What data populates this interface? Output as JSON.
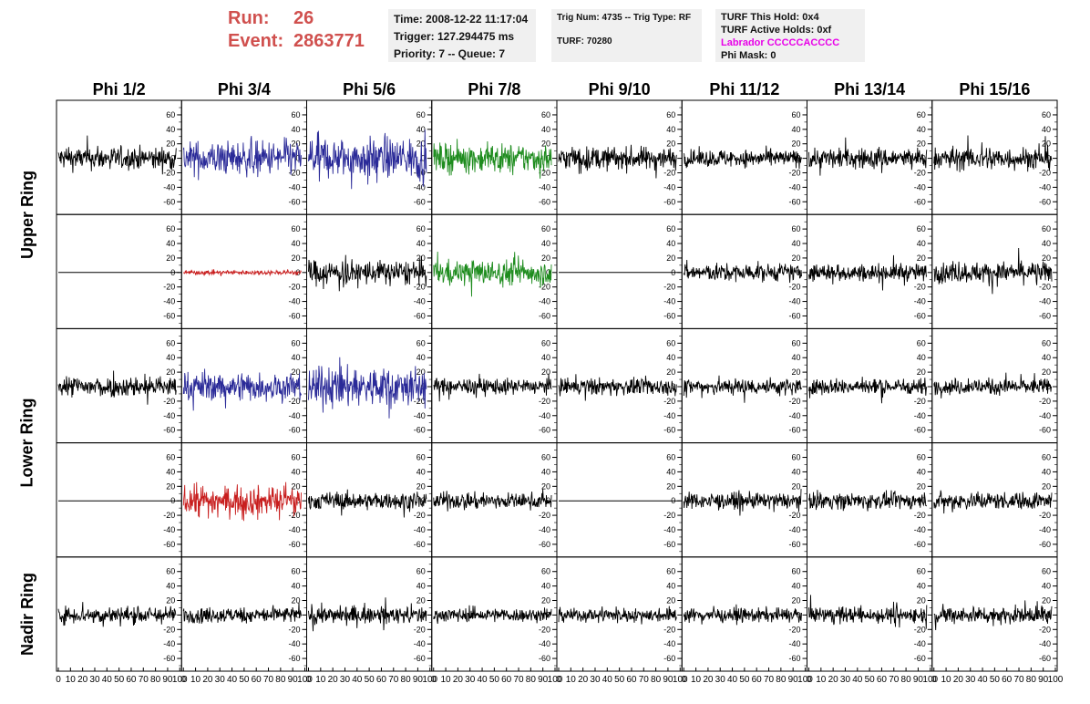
{
  "header": {
    "run_label": "Run:",
    "run_value": "26",
    "event_label": "Event:",
    "event_value": "2863771"
  },
  "info1": {
    "time": "Time: 2008-12-22 11:17:04",
    "trigger": "Trigger: 127.294475 ms",
    "priority": "Priority: 7 -- Queue: 7"
  },
  "info2": {
    "trig": "Trig Num: 4735 -- Trig Type: RF",
    "turf": "TURF: 70280"
  },
  "info3": {
    "this_hold": "TURF This Hold: 0x4",
    "active_holds": "TURF Active Holds: 0xf",
    "labrador": "Labrador CCCCCACCCC",
    "phi_mask": "Phi Mask: 0"
  },
  "columns": [
    "Phi 1/2",
    "Phi 3/4",
    "Phi 5/6",
    "Phi 7/8",
    "Phi 9/10",
    "Phi 11/12",
    "Phi 13/14",
    "Phi 15/16"
  ],
  "rows": [
    "Upper Ring",
    "Lower Ring",
    "Nadir Ring"
  ],
  "colors": {
    "black": "#000000",
    "blue": "#2a2a98",
    "red": "#c81e1e",
    "green": "#1e8c1e",
    "header_red": "#d0504e",
    "magenta": "#e800e8"
  },
  "chart_data": {
    "type": "line",
    "xlim": [
      0,
      100
    ],
    "ylim": [
      -70,
      70
    ],
    "y_ticks": [
      -60,
      -40,
      -20,
      0,
      20,
      40,
      60
    ],
    "x_ticks": [
      0,
      10,
      20,
      30,
      40,
      50,
      60,
      70,
      80,
      90,
      100
    ],
    "panel_rows": 5,
    "panel_cols": 8,
    "panels": [
      [
        "black:20",
        "blue:30",
        "blue:35",
        "green:25",
        "black:20",
        "black:15",
        "black:18",
        "black:20"
      ],
      [
        "flat",
        "red:4",
        "black:22",
        "green:22",
        "flat",
        "black:15",
        "black:15",
        "black:18"
      ],
      [
        "black:18",
        "blue:25",
        "blue:35",
        "black:14",
        "black:15",
        "black:15",
        "black:14",
        "black:14"
      ],
      [
        "flat",
        "red:25",
        "black:15",
        "black:14",
        "flat",
        "black:14",
        "black:14",
        "black:15"
      ],
      [
        "black:15",
        "black:14",
        "black:15",
        "black:12",
        "black:12",
        "black:12",
        "black:14",
        "black:15"
      ]
    ]
  }
}
